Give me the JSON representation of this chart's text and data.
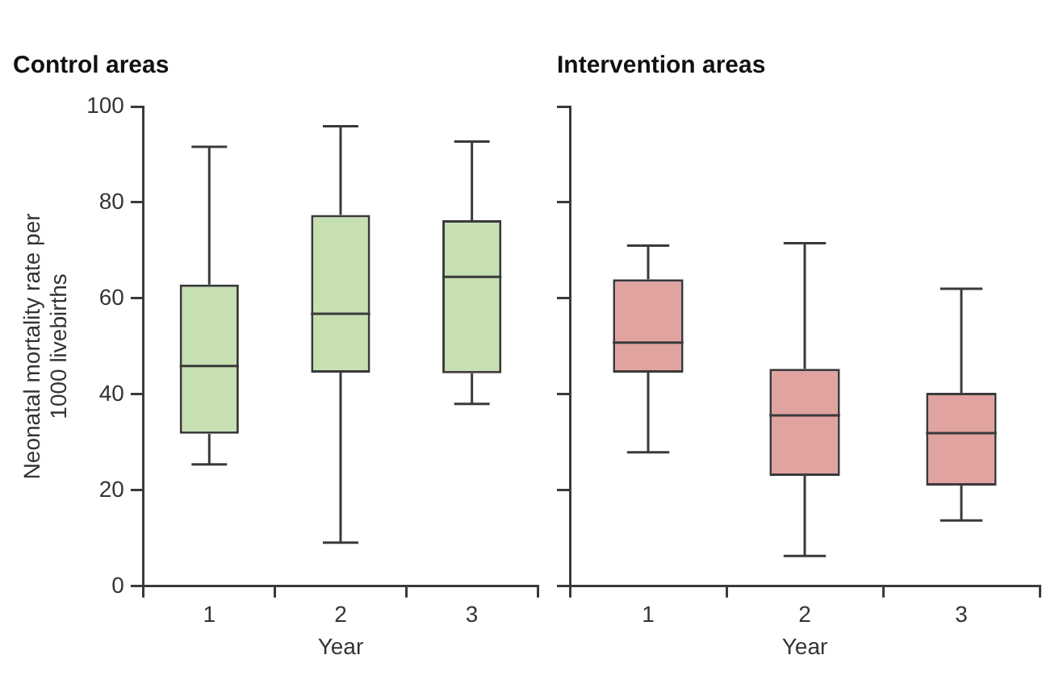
{
  "chart_data": [
    {
      "type": "box",
      "title": "Control areas",
      "xlabel": "Year",
      "ylabel": "Neonatal mortality rate per 1000 livebirths",
      "categories": [
        "1",
        "2",
        "3"
      ],
      "color": "#c6e0b2",
      "ylim": [
        0,
        100
      ],
      "yticks": [
        0,
        20,
        40,
        60,
        80,
        100
      ],
      "grid": false,
      "legend": false,
      "boxes": [
        {
          "low": 25.4,
          "q1": 31.8,
          "median": 45.9,
          "q3": 62.9,
          "high": 91.6
        },
        {
          "low": 9.1,
          "q1": 44.5,
          "median": 56.8,
          "q3": 77.4,
          "high": 95.9
        },
        {
          "low": 38.0,
          "q1": 44.4,
          "median": 64.5,
          "q3": 76.3,
          "high": 92.7
        }
      ]
    },
    {
      "type": "box",
      "title": "Intervention areas",
      "xlabel": "Year",
      "categories": [
        "1",
        "2",
        "3"
      ],
      "color": "#e0a39f",
      "ylim": [
        0,
        100
      ],
      "yticks": [
        0,
        20,
        40,
        60,
        80,
        100
      ],
      "grid": false,
      "legend": false,
      "tick_labels": "x",
      "boxes": [
        {
          "low": 27.9,
          "q1": 44.5,
          "median": 50.8,
          "q3": 64.0,
          "high": 71.0
        },
        {
          "low": 6.3,
          "q1": 23.0,
          "median": 35.6,
          "q3": 45.3,
          "high": 71.5
        },
        {
          "low": 13.7,
          "q1": 21.0,
          "median": 31.9,
          "q3": 40.3,
          "high": 62.0
        }
      ]
    }
  ]
}
